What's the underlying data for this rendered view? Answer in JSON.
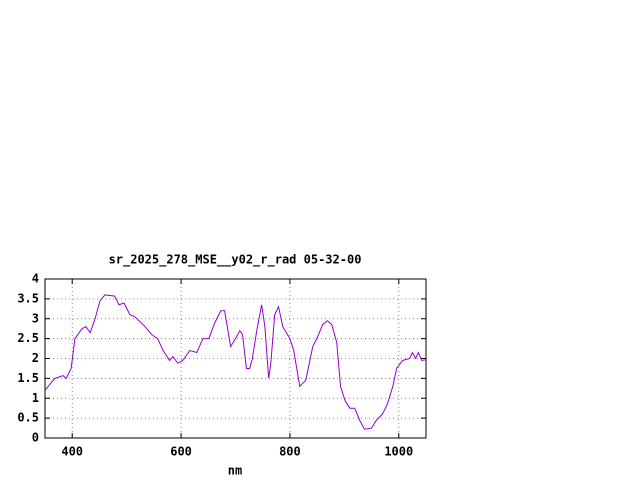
{
  "chart_data": {
    "type": "line",
    "title": "sr_2025_278_MSE__y02_r_rad 05-32-00",
    "x_label": "nm",
    "x": [
      350,
      368,
      383,
      389,
      398,
      405,
      418,
      425,
      433,
      442,
      451,
      460,
      478,
      486,
      495,
      506,
      515,
      534,
      546,
      557,
      567,
      579,
      585,
      594,
      603,
      616,
      629,
      640,
      651,
      662,
      673,
      680,
      691,
      700,
      708,
      713,
      720,
      726,
      731,
      739,
      748,
      754,
      761,
      765,
      772,
      779,
      787,
      800,
      807,
      818,
      829,
      842,
      851,
      860,
      869,
      877,
      886,
      893,
      901,
      910,
      919,
      928,
      937,
      950,
      959,
      970,
      979,
      989,
      996,
      1007,
      1020,
      1025,
      1031,
      1036,
      1042,
      1050
    ],
    "series": [
      {
        "name": "sr_2025_278_MSE__y02_r_rad 05-32-00",
        "color": "#9400d3",
        "values": [
          1.2,
          1.5,
          1.57,
          1.5,
          1.75,
          2.5,
          2.75,
          2.8,
          2.65,
          3.0,
          3.45,
          3.6,
          3.57,
          3.35,
          3.4,
          3.1,
          3.05,
          2.8,
          2.6,
          2.5,
          2.2,
          1.95,
          2.05,
          1.88,
          1.95,
          2.2,
          2.15,
          2.5,
          2.5,
          2.9,
          3.2,
          3.2,
          2.3,
          2.5,
          2.7,
          2.6,
          1.75,
          1.75,
          2.0,
          2.7,
          3.35,
          2.8,
          1.5,
          1.9,
          3.1,
          3.3,
          2.8,
          2.5,
          2.2,
          1.3,
          1.45,
          2.3,
          2.55,
          2.85,
          2.95,
          2.85,
          2.4,
          1.3,
          0.95,
          0.75,
          0.75,
          0.45,
          0.22,
          0.25,
          0.45,
          0.6,
          0.85,
          1.3,
          1.75,
          1.95,
          2.0,
          2.15,
          2.0,
          2.15,
          1.95,
          1.97
        ]
      }
    ],
    "xlim": [
      350,
      1050
    ],
    "xticks": [
      400,
      600,
      800,
      1000
    ],
    "ylim": [
      0,
      4
    ],
    "yticks": [
      0,
      0.5,
      1,
      1.5,
      2,
      2.5,
      3,
      3.5,
      4
    ],
    "grid": true
  }
}
